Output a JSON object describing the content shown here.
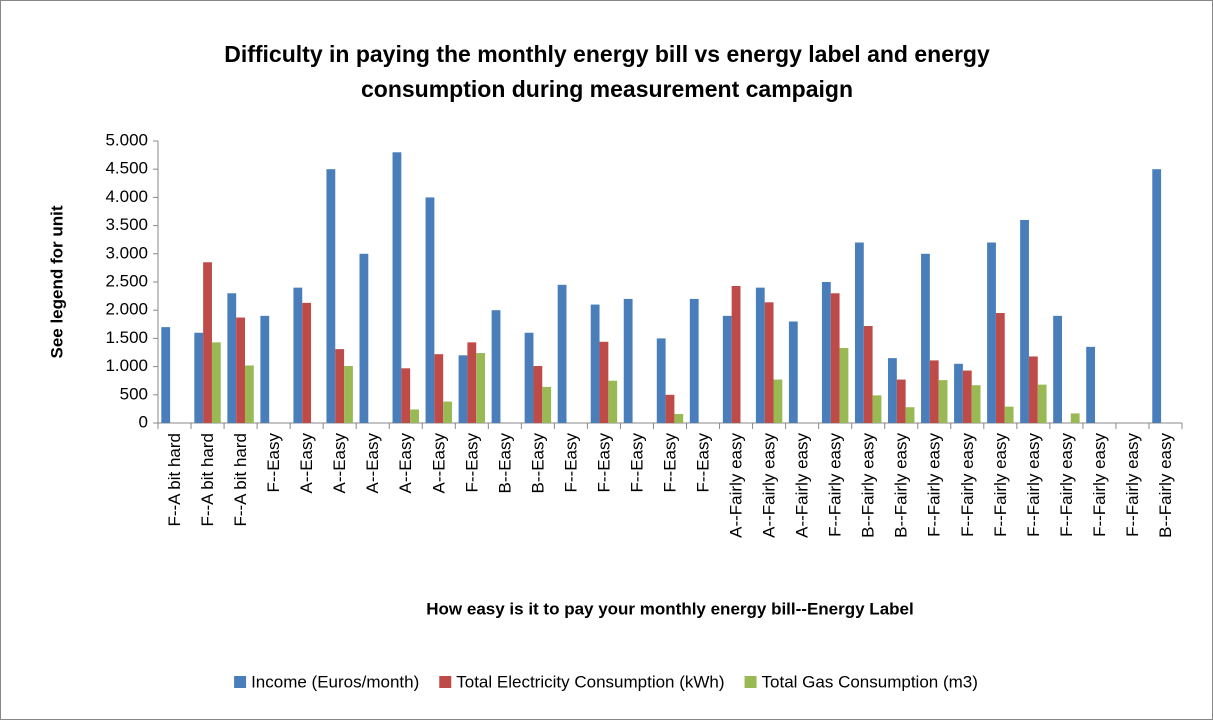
{
  "chart_data": {
    "type": "bar",
    "title": [
      "Difficulty in paying the monthly energy bill vs energy label and  energy",
      "consumption during measurement campaign"
    ],
    "y_label": "See legend for unit",
    "x_label": "How easy is it to pay your monthly energy bill--Energy Label",
    "categories": [
      "F--A bit hard",
      "F--A bit hard",
      "F--A bit hard",
      "F--Easy",
      "A--Easy",
      "A--Easy",
      "A--Easy",
      "A--Easy",
      "A--Easy",
      "F--Easy",
      "B--Easy",
      "B--Easy",
      "F--Easy",
      "F--Easy",
      "F--Easy",
      "F--Easy",
      "F--Easy",
      "A--Fairly easy",
      "A--Fairly easy",
      "A--Fairly easy",
      "F--Fairly easy",
      "B--Fairly easy",
      "B--Fairly easy",
      "F--Fairly easy",
      "F--Fairly easy",
      "F--Fairly easy",
      "F--Fairly easy",
      "F--Fairly easy",
      "F--Fairly easy",
      "F--Fairly easy",
      "B--Fairly easy"
    ],
    "series": [
      {
        "name": "Income (Euros/month)",
        "color": "#4a7ebb",
        "values": [
          1700,
          1600,
          2300,
          1900,
          2400,
          4500,
          3000,
          4800,
          4000,
          1200,
          2000,
          1600,
          2450,
          2100,
          2200,
          1500,
          2200,
          1900,
          2400,
          1800,
          2500,
          3200,
          1150,
          3000,
          1050,
          3200,
          3600,
          1900,
          1350,
          null,
          4500
        ]
      },
      {
        "name": "Total Electricity Consumption (kWh)",
        "color": "#be4b48",
        "values": [
          null,
          2850,
          1870,
          null,
          2130,
          1310,
          null,
          970,
          1220,
          1430,
          null,
          1010,
          null,
          1440,
          null,
          500,
          null,
          2430,
          2140,
          null,
          2300,
          1720,
          770,
          1110,
          930,
          1950,
          1180,
          null,
          null,
          null,
          null
        ]
      },
      {
        "name": "Total Gas Consumption (m3)",
        "color": "#98b954",
        "values": [
          null,
          1430,
          1020,
          null,
          null,
          1010,
          null,
          240,
          380,
          1240,
          null,
          640,
          null,
          750,
          null,
          160,
          null,
          null,
          770,
          null,
          1330,
          490,
          280,
          760,
          670,
          290,
          680,
          170,
          null,
          null,
          null
        ]
      }
    ],
    "ylim": [
      0,
      5000
    ],
    "yticks": [
      0,
      {
        "value": 500,
        "label": "500"
      },
      {
        "value": 1000,
        "label": "1.000"
      },
      {
        "value": 1500,
        "label": "1.500"
      },
      {
        "value": 2000,
        "label": "2.000"
      },
      {
        "value": 2500,
        "label": "2.500"
      },
      {
        "value": 3000,
        "label": "3.000"
      },
      {
        "value": 3500,
        "label": "3.500"
      },
      {
        "value": 4000,
        "label": "4.000"
      },
      {
        "value": 4500,
        "label": "4.500"
      },
      {
        "value": 5000,
        "label": "5.000"
      }
    ],
    "legend": "bottom"
  }
}
